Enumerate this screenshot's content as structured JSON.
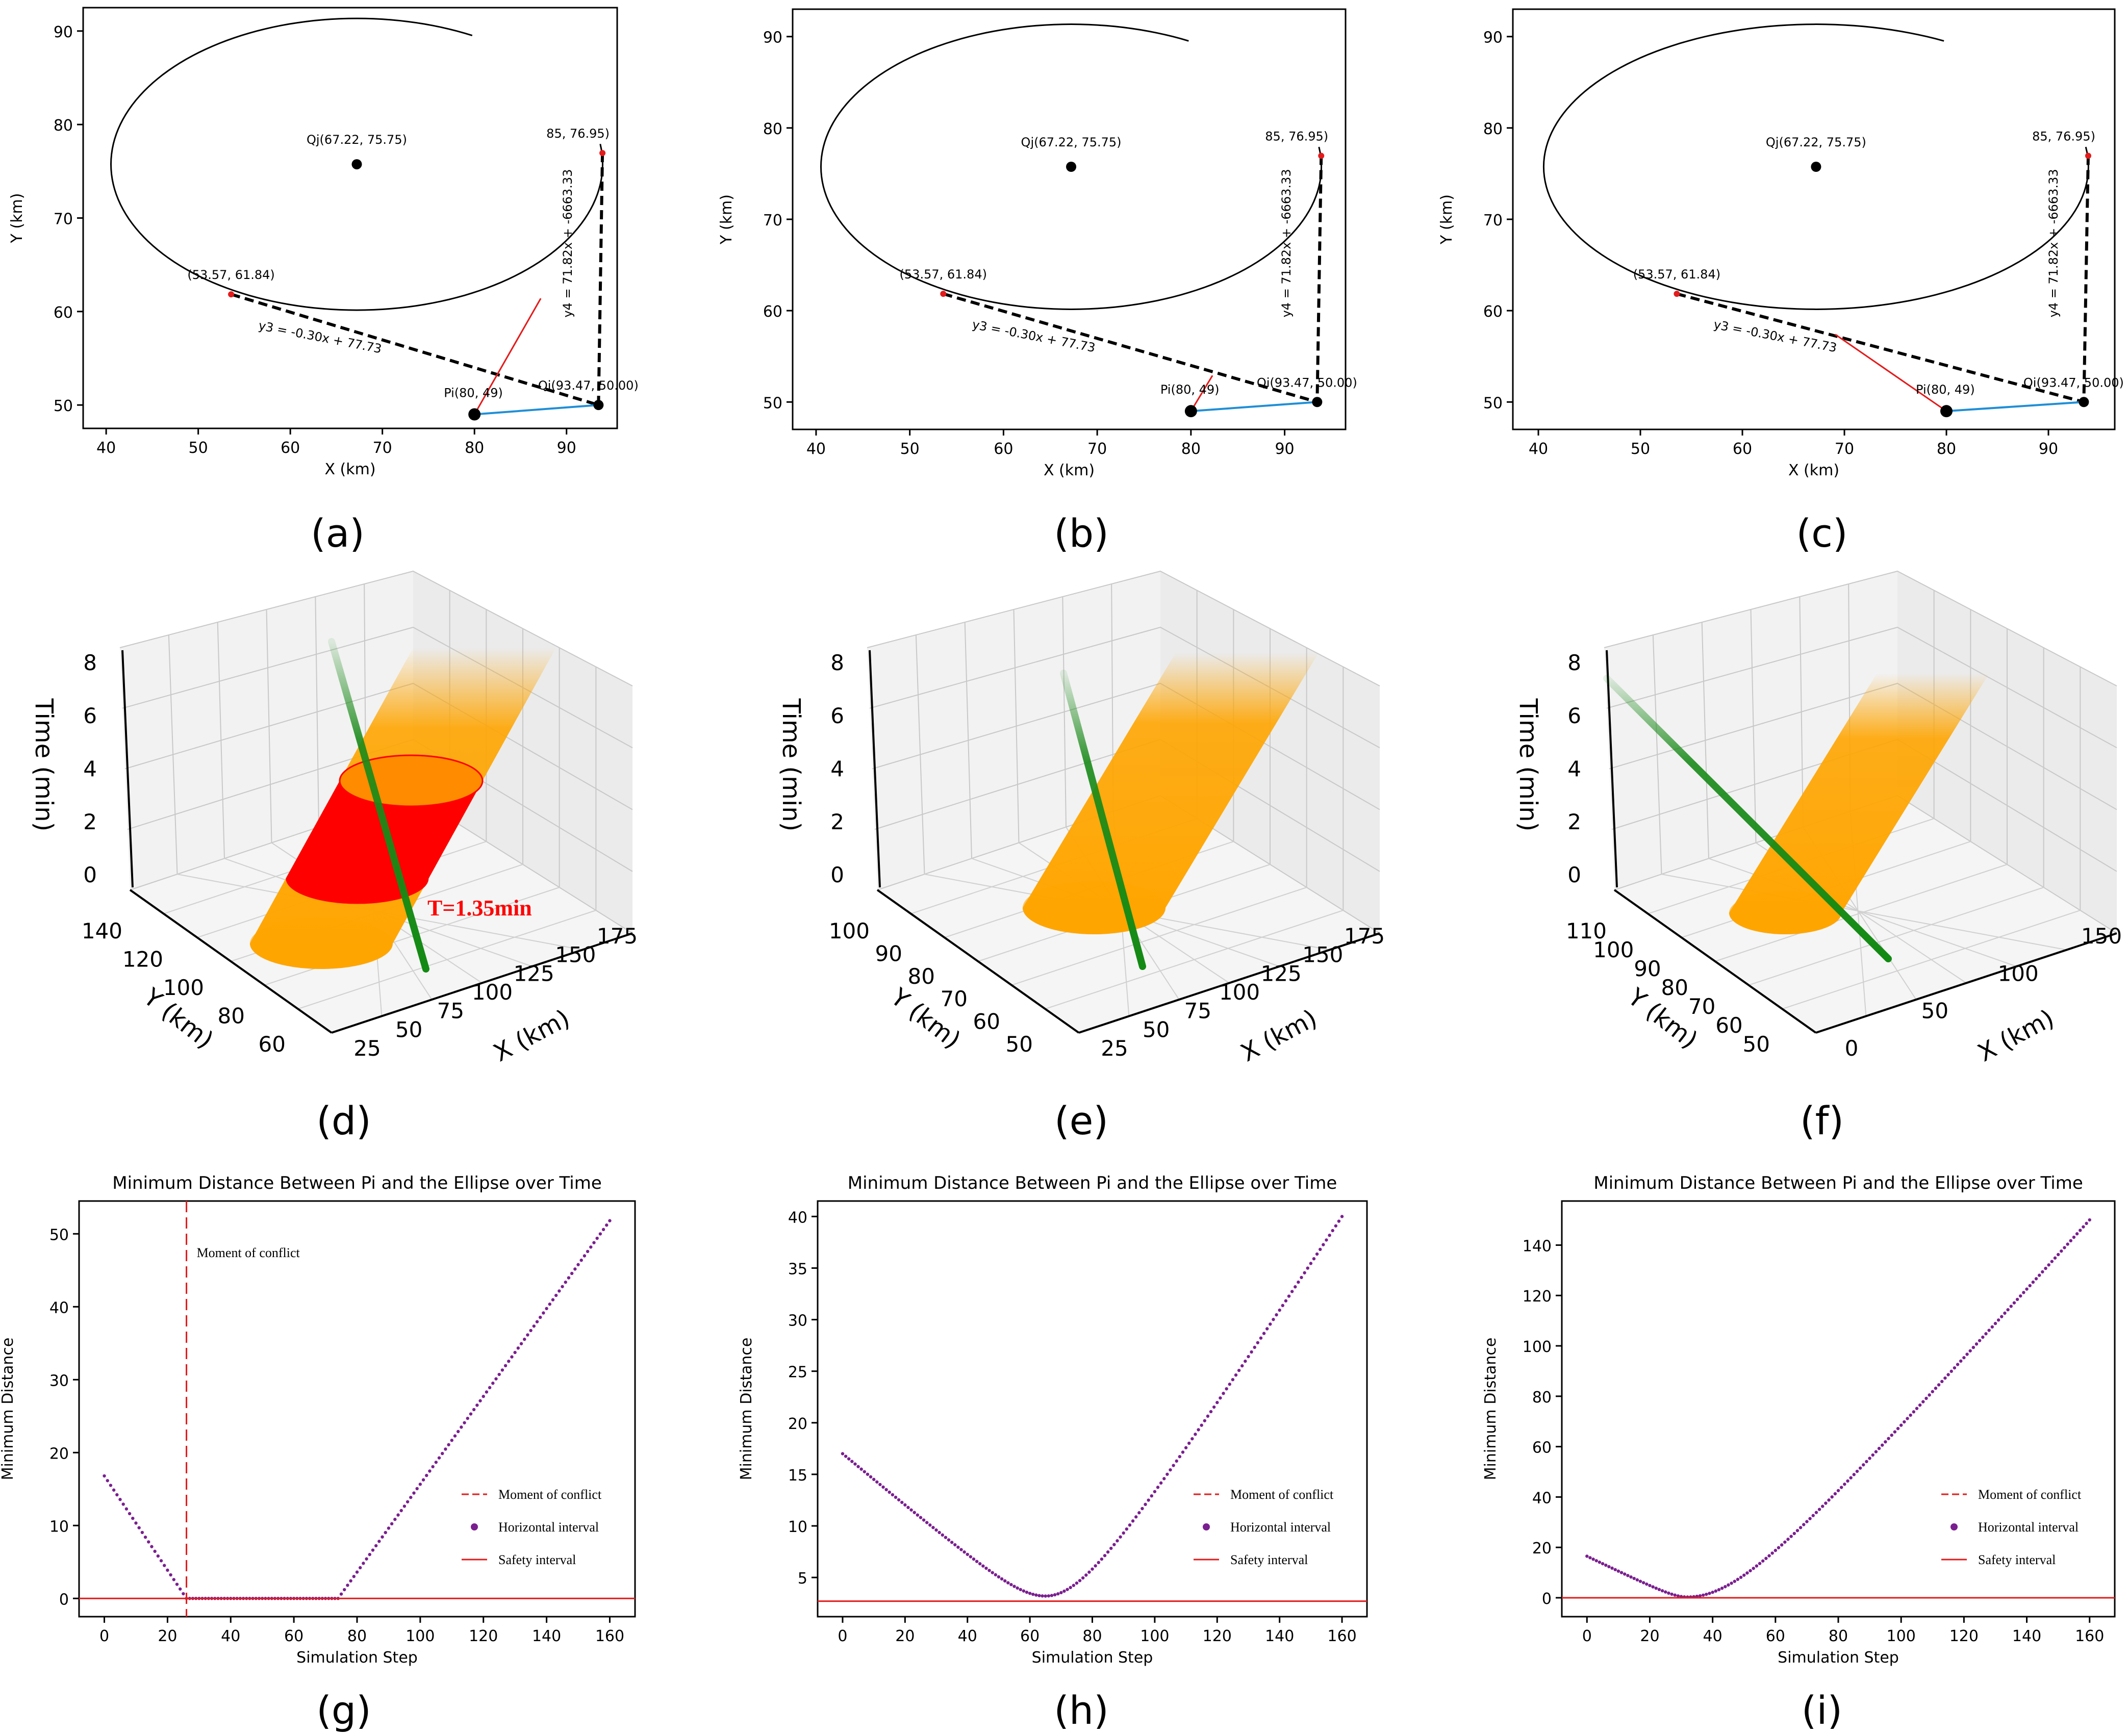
{
  "panel_labels": [
    "(a)",
    "(b)",
    "(c)",
    "(d)",
    "(e)",
    "(f)",
    "(g)",
    "(h)",
    "(i)"
  ],
  "chart_data": [
    {
      "id": "a",
      "type": "scatter",
      "title": "",
      "xlabel": "X (km)",
      "ylabel": "Y (km)",
      "xlim": [
        37.5,
        95.5
      ],
      "ylim": [
        47.5,
        92.5
      ],
      "xticks": [
        40,
        50,
        60,
        70,
        80,
        90
      ],
      "yticks": [
        50,
        60,
        70,
        80,
        90
      ],
      "ellipse": {
        "center": [
          67.22,
          75.75
        ],
        "rx": 26.7,
        "ry": 15.6,
        "gap": [
          8,
          62
        ]
      },
      "points": {
        "Pi": [
          80,
          49
        ],
        "Qi": [
          93.47,
          50.0
        ],
        "Qj": [
          67.22,
          75.75
        ],
        "T3": [
          53.57,
          61.84
        ],
        "T4": [
          93.9,
          76.95
        ]
      },
      "arrow": [
        [
          80,
          49
        ],
        [
          87.2,
          61.4
        ]
      ],
      "labels": {
        "pi": "Pi(80, 49)",
        "qi": "Qi(93.47, 50.00)",
        "qj": "Qj(67.22, 75.75)",
        "t3": "(53.57, 61.84)",
        "t4": "85, 76.95)",
        "y3": "y3 = -0.30x + 77.73",
        "y4": "y4 = 71.82x + -6663.33"
      }
    },
    {
      "id": "b",
      "type": "scatter",
      "title": "",
      "xlabel": "X (km)",
      "ylabel": "Y (km)",
      "xlim": [
        37.5,
        96.5
      ],
      "ylim": [
        47.0,
        93.0
      ],
      "xticks": [
        40,
        50,
        60,
        70,
        80,
        90
      ],
      "yticks": [
        50,
        60,
        70,
        80,
        90
      ],
      "ellipse": {
        "center": [
          67.22,
          75.75
        ],
        "rx": 26.7,
        "ry": 15.6,
        "gap": [
          8,
          62
        ]
      },
      "points": {
        "Pi": [
          80,
          49
        ],
        "Qi": [
          93.47,
          50.0
        ],
        "Qj": [
          67.22,
          75.75
        ],
        "T3": [
          53.57,
          61.84
        ],
        "T4": [
          93.9,
          76.95
        ]
      },
      "arrow": [
        [
          80,
          49
        ],
        [
          82.3,
          52.9
        ]
      ],
      "labels": {
        "pi": "Pi(80, 49)",
        "qi": "Qi(93.47, 50.00)",
        "qj": "Qj(67.22, 75.75)",
        "t3": "(53.57, 61.84)",
        "t4": "85, 76.95)",
        "y3": "y3 = -0.30x + 77.73",
        "y4": "y4 = 71.82x + -6663.33"
      }
    },
    {
      "id": "c",
      "type": "scatter",
      "title": "",
      "xlabel": "X (km)",
      "ylabel": "Y (km)",
      "xlim": [
        37.5,
        96.5
      ],
      "ylim": [
        47.0,
        93.0
      ],
      "xticks": [
        40,
        50,
        60,
        70,
        80,
        90
      ],
      "yticks": [
        50,
        60,
        70,
        80,
        90
      ],
      "ellipse": {
        "center": [
          67.22,
          75.75
        ],
        "rx": 26.7,
        "ry": 15.6,
        "gap": [
          8,
          62
        ]
      },
      "points": {
        "Pi": [
          80,
          49
        ],
        "Qi": [
          93.47,
          50.0
        ],
        "Qj": [
          67.22,
          75.75
        ],
        "T3": [
          53.57,
          61.84
        ],
        "T4": [
          93.9,
          76.95
        ]
      },
      "arrow": [
        [
          80,
          49
        ],
        [
          69.1,
          57.4
        ]
      ],
      "labels": {
        "pi": "Pi(80, 49)",
        "qi": "Qi(93.47, 50.00)",
        "qj": "Qj(67.22, 75.75)",
        "t3": "(53.57, 61.84)",
        "t4": "85, 76.95)",
        "y3": "y3 = -0.30x + 77.73",
        "y4": "y4 = 71.82x + -6663.33"
      }
    },
    {
      "id": "d",
      "type": "3d-surface",
      "zlabel": "Time (min)",
      "ylabel": "Y (km)",
      "xlabel": "X (km)",
      "zticks": [
        0,
        2,
        4,
        6,
        8
      ],
      "yticks": [
        60,
        80,
        100,
        120,
        140
      ],
      "xticks": [
        25,
        50,
        75,
        100,
        125,
        150,
        175
      ],
      "annotation": "T=1.35min"
    },
    {
      "id": "e",
      "type": "3d-surface",
      "zlabel": "Time (min)",
      "ylabel": "Y (km)",
      "xlabel": "X (km)",
      "zticks": [
        0,
        2,
        4,
        6,
        8
      ],
      "yticks": [
        50,
        60,
        70,
        80,
        90,
        100
      ],
      "xticks": [
        25,
        50,
        75,
        100,
        125,
        150,
        175
      ]
    },
    {
      "id": "f",
      "type": "3d-surface",
      "zlabel": "Time (min)",
      "ylabel": "Y (km)",
      "xlabel": "X (km)",
      "zticks": [
        0,
        2,
        4,
        6,
        8
      ],
      "yticks": [
        50,
        60,
        70,
        80,
        90,
        100,
        110
      ],
      "xticks": [
        0,
        50,
        100,
        150
      ]
    },
    {
      "id": "g",
      "type": "scatter",
      "title": "Minimum Distance Between Pi and the Ellipse over Time",
      "xlabel": "Simulation Step",
      "ylabel": "Minimum Distance",
      "xlim": [
        -8,
        168
      ],
      "ylim": [
        -2.5,
        54.5
      ],
      "xticks": [
        0,
        20,
        40,
        60,
        80,
        100,
        120,
        140,
        160
      ],
      "yticks": [
        0,
        10,
        20,
        30,
        40,
        50
      ],
      "curve": {
        "kind": "v_flat",
        "x0": 0,
        "y0": 16.8,
        "x_start": 26,
        "x_end": 74,
        "x1": 160,
        "y1": 51.8,
        "step": 1
      },
      "safety_interval": 0.0,
      "conflict_x": 26,
      "conflict_text": "Moment of conflict",
      "legend": [
        "Moment of conflict",
        "Horizontal interval",
        "Safety interval"
      ]
    },
    {
      "id": "h",
      "type": "scatter",
      "title": "Minimum Distance Between Pi and the Ellipse over Time",
      "xlabel": "Simulation Step",
      "ylabel": "Minimum Distance",
      "xlim": [
        -8,
        168
      ],
      "ylim": [
        1.2,
        41.5
      ],
      "xticks": [
        0,
        20,
        40,
        60,
        80,
        100,
        120,
        140,
        160
      ],
      "yticks": [
        5,
        10,
        15,
        20,
        25,
        30,
        35,
        40
      ],
      "curve": {
        "kind": "hyperbola",
        "x_min": 65,
        "y_min": 3.2,
        "a": 0.0,
        "x0": 0,
        "y0": 17.0,
        "x1": 160,
        "y1": 40.0,
        "step": 1
      },
      "safety_interval": 2.7,
      "legend": [
        "Moment of conflict",
        "Horizontal interval",
        "Safety interval"
      ]
    },
    {
      "id": "i",
      "type": "scatter",
      "title": "Minimum Distance Between Pi and the Ellipse over Time",
      "xlabel": "Simulation Step",
      "ylabel": "Minimum Distance",
      "xlim": [
        -8,
        168
      ],
      "ylim": [
        -7.5,
        157.5
      ],
      "xticks": [
        0,
        20,
        40,
        60,
        80,
        100,
        120,
        140,
        160
      ],
      "yticks": [
        0,
        20,
        40,
        60,
        80,
        100,
        120,
        140
      ],
      "curve": {
        "kind": "hyperbola",
        "x_min": 32,
        "y_min": 0.3,
        "x0": 0,
        "y0": 16.5,
        "x1": 160,
        "y1": 150.0,
        "step": 1
      },
      "safety_interval": 0.0,
      "legend": [
        "Moment of conflict",
        "Horizontal interval",
        "Safety interval"
      ]
    }
  ]
}
